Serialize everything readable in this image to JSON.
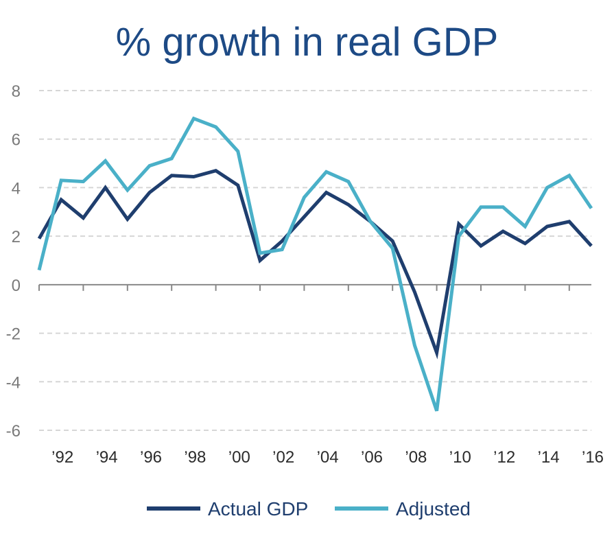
{
  "chart_data": {
    "type": "line",
    "title": "% growth in real GDP",
    "xlabel": "",
    "ylabel": "",
    "ylim": [
      -6,
      8
    ],
    "yticks": [
      "8",
      "6",
      "4",
      "2",
      "0",
      "-2",
      "-4",
      "-6"
    ],
    "ytick_values": [
      8,
      6,
      4,
      2,
      0,
      -2,
      -4,
      -6
    ],
    "x": [
      1991,
      1992,
      1993,
      1994,
      1995,
      1996,
      1997,
      1998,
      1999,
      2000,
      2001,
      2002,
      2003,
      2004,
      2005,
      2006,
      2007,
      2008,
      2009,
      2010,
      2011,
      2012,
      2013,
      2014,
      2015,
      2016
    ],
    "xticks": [
      "’92",
      "’94",
      "’96",
      "’98",
      "’00",
      "’02",
      "’04",
      "’06",
      "’08",
      "’10",
      "’12",
      "’14",
      "’16"
    ],
    "xtick_values": [
      1992,
      1994,
      1996,
      1998,
      2000,
      2002,
      2004,
      2006,
      2008,
      2010,
      2012,
      2014,
      2016
    ],
    "grid": true,
    "legend": "bottom-center",
    "series": [
      {
        "name": "Actual GDP",
        "color": "#1f3e6e",
        "values": [
          1.9,
          3.5,
          2.75,
          4.0,
          2.7,
          3.8,
          4.5,
          4.45,
          4.7,
          4.1,
          1.0,
          1.8,
          2.8,
          3.8,
          3.3,
          2.6,
          1.8,
          -0.3,
          -2.8,
          2.5,
          1.6,
          2.2,
          1.7,
          2.4,
          2.6,
          1.6
        ]
      },
      {
        "name": "Adjusted",
        "color": "#4ab0c8",
        "values": [
          0.6,
          4.3,
          4.25,
          5.1,
          3.9,
          4.9,
          5.2,
          6.85,
          6.5,
          5.5,
          1.3,
          1.45,
          3.6,
          4.65,
          4.25,
          2.6,
          1.5,
          -2.5,
          -5.2,
          2.0,
          3.2,
          3.2,
          2.4,
          4.0,
          4.5,
          3.15
        ]
      }
    ]
  },
  "colors": {
    "title": "#1d4a85",
    "grid": "#d6d6d6",
    "axis": "#888888"
  }
}
